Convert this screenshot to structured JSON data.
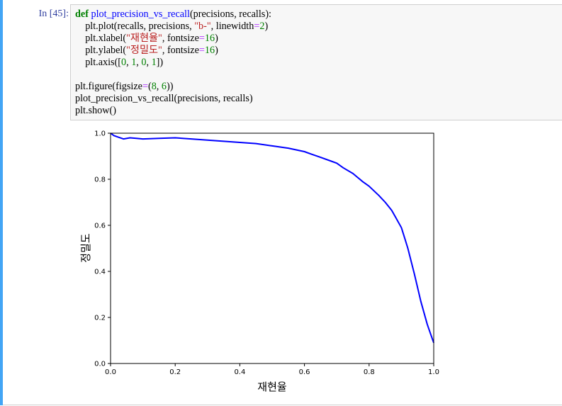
{
  "cell": {
    "prompt": "In [45]:",
    "accent_color": "#42a5f5",
    "code_lines": [
      [
        {
          "t": "def",
          "c": "kw"
        },
        {
          "t": " "
        },
        {
          "t": "plot_precision_vs_recall",
          "c": "fn"
        },
        {
          "t": "(precisions, recalls):"
        }
      ],
      [
        {
          "t": "    plt.plot(recalls, precisions, "
        },
        {
          "t": "\"b-\"",
          "c": "str"
        },
        {
          "t": ", linewidth"
        },
        {
          "t": "=",
          "c": "op"
        },
        {
          "t": "2",
          "c": "num"
        },
        {
          "t": ")"
        }
      ],
      [
        {
          "t": "    plt.xlabel("
        },
        {
          "t": "\"재현율\"",
          "c": "str"
        },
        {
          "t": ", fontsize"
        },
        {
          "t": "=",
          "c": "op"
        },
        {
          "t": "16",
          "c": "num"
        },
        {
          "t": ")"
        }
      ],
      [
        {
          "t": "    plt.ylabel("
        },
        {
          "t": "\"정밀도\"",
          "c": "str"
        },
        {
          "t": ", fontsize"
        },
        {
          "t": "=",
          "c": "op"
        },
        {
          "t": "16",
          "c": "num"
        },
        {
          "t": ")"
        }
      ],
      [
        {
          "t": "    plt.axis(["
        },
        {
          "t": "0",
          "c": "num"
        },
        {
          "t": ", "
        },
        {
          "t": "1",
          "c": "num"
        },
        {
          "t": ", "
        },
        {
          "t": "0",
          "c": "num"
        },
        {
          "t": ", "
        },
        {
          "t": "1",
          "c": "num"
        },
        {
          "t": "])"
        }
      ],
      [],
      [
        {
          "t": "plt.figure(figsize"
        },
        {
          "t": "=",
          "c": "op"
        },
        {
          "t": "("
        },
        {
          "t": "8",
          "c": "num"
        },
        {
          "t": ", "
        },
        {
          "t": "6",
          "c": "num"
        },
        {
          "t": "))"
        }
      ],
      [
        {
          "t": "plot_precision_vs_recall(precisions, recalls)"
        }
      ],
      [
        {
          "t": "plt.show()"
        }
      ]
    ]
  },
  "chart_data": {
    "type": "line",
    "xlabel": "재현율",
    "ylabel": "정밀도",
    "xlim": [
      0,
      1
    ],
    "ylim": [
      0,
      1
    ],
    "grid": false,
    "xticks": [
      "0.0",
      "0.2",
      "0.4",
      "0.6",
      "0.8",
      "1.0"
    ],
    "yticks": [
      "0.0",
      "0.2",
      "0.4",
      "0.6",
      "0.8",
      "1.0"
    ],
    "series": [
      {
        "color": "#0000ff",
        "x": [
          0.0,
          0.005,
          0.01,
          0.02,
          0.04,
          0.06,
          0.08,
          0.1,
          0.15,
          0.2,
          0.25,
          0.3,
          0.35,
          0.4,
          0.45,
          0.5,
          0.55,
          0.6,
          0.62,
          0.65,
          0.68,
          0.7,
          0.72,
          0.75,
          0.78,
          0.8,
          0.83,
          0.85,
          0.87,
          0.88,
          0.9,
          0.91,
          0.92,
          0.94,
          0.96,
          0.98,
          0.99,
          1.0
        ],
        "y": [
          1.0,
          0.995,
          0.99,
          0.985,
          0.975,
          0.98,
          0.978,
          0.975,
          0.978,
          0.98,
          0.975,
          0.97,
          0.965,
          0.96,
          0.955,
          0.945,
          0.935,
          0.92,
          0.91,
          0.895,
          0.88,
          0.87,
          0.85,
          0.825,
          0.79,
          0.77,
          0.73,
          0.7,
          0.665,
          0.64,
          0.59,
          0.545,
          0.5,
          0.39,
          0.27,
          0.17,
          0.13,
          0.09
        ]
      }
    ]
  }
}
